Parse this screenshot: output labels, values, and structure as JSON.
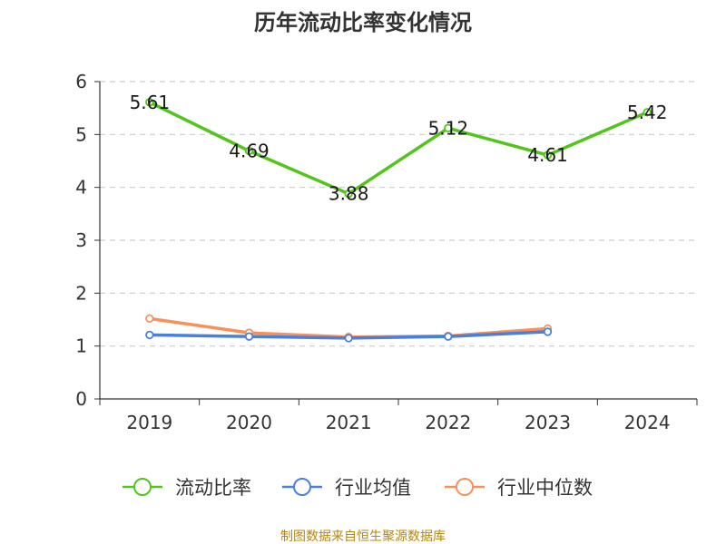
{
  "title": "历年流动比率变化情况",
  "source": "制图数据来自恒生聚源数据库",
  "chart_data": {
    "type": "line",
    "categories": [
      "2019",
      "2020",
      "2021",
      "2022",
      "2023",
      "2024"
    ],
    "ylim": [
      0,
      6
    ],
    "yticks": [
      0,
      1,
      2,
      3,
      4,
      5,
      6
    ],
    "grid": true,
    "legend_position": "bottom",
    "series": [
      {
        "name": "流动比率",
        "color": "#52c41a",
        "values": [
          5.61,
          4.69,
          3.88,
          5.12,
          4.61,
          5.42
        ],
        "labels": true
      },
      {
        "name": "行业均值",
        "color": "#4a7fdc",
        "values": [
          1.21,
          1.18,
          1.15,
          1.18,
          1.27,
          null
        ],
        "labels": false
      },
      {
        "name": "行业中位数",
        "color": "#f79159",
        "values": [
          1.52,
          1.25,
          1.17,
          1.19,
          1.33,
          null
        ],
        "labels": false
      }
    ]
  }
}
